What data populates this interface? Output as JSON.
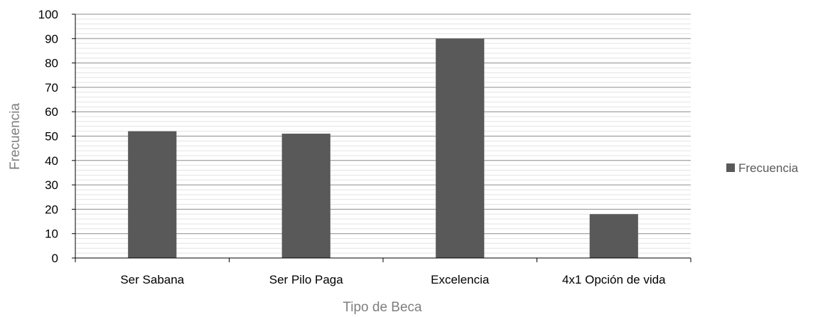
{
  "chart_data": {
    "type": "bar",
    "categories": [
      "Ser Sabana",
      "Ser Pilo Paga",
      "Excelencia",
      "4x1 Opción de vida"
    ],
    "series": [
      {
        "name": "Frecuencia",
        "values": [
          52,
          51,
          90,
          18
        ],
        "color": "#595959"
      }
    ],
    "xlabel": "Tipo de Beca",
    "ylabel": "Frecuencia",
    "ylim": [
      0,
      100
    ],
    "yticks": [
      0,
      10,
      20,
      30,
      40,
      50,
      60,
      70,
      80,
      90,
      100
    ],
    "grid": true,
    "legend": "right"
  }
}
